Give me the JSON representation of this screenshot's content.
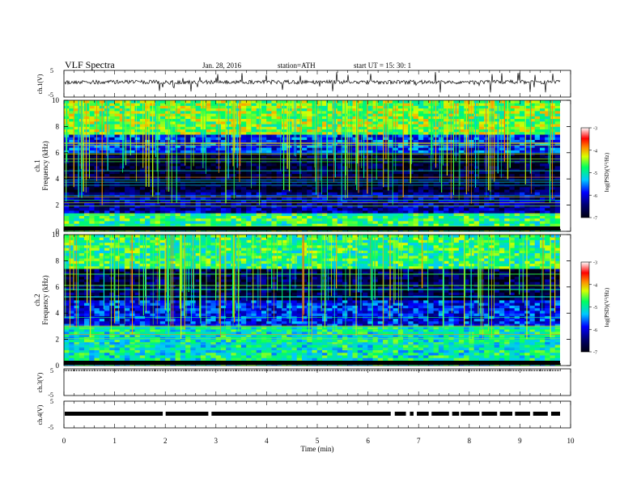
{
  "header": {
    "title": "VLF  Spectra",
    "date": "Jan. 28, 2016",
    "station": "station=ATH",
    "start": "start  UT  =    15: 30: 1"
  },
  "chart_data": [
    {
      "type": "line",
      "panel": "ch1-waveform",
      "ylabel": "ch.1(V)",
      "ylim": [
        -5,
        5
      ],
      "yticks": [
        "5",
        "-5"
      ],
      "xlim": [
        0,
        10
      ],
      "series": [
        {
          "values_note": "noisy waveform near 0 V with spikes",
          "baseline": 0
        }
      ]
    },
    {
      "type": "heatmap",
      "panel": "ch1-spectrogram",
      "ylabel_line1": "ch.1",
      "ylabel_line2": "Frequency  (kHz)",
      "ylim": [
        0,
        10
      ],
      "yticks": [
        "0",
        "2",
        "4",
        "6",
        "8",
        "10"
      ],
      "xlim": [
        0,
        9.8
      ],
      "colorbar": {
        "label": "log(PSD)(V²/Hz)",
        "ticks": [
          "-3",
          "-4",
          "-5",
          "-6",
          "-7"
        ],
        "range": [
          -7,
          -3
        ]
      },
      "bands": [
        {
          "from": 0,
          "to": 1.5,
          "level": 0.55
        },
        {
          "from": 1.5,
          "to": 3.0,
          "level": 0.18
        },
        {
          "from": 3.0,
          "to": 6.0,
          "level": 0.05
        },
        {
          "from": 6.0,
          "to": 7.5,
          "level": 0.3
        },
        {
          "from": 7.5,
          "to": 10.0,
          "level": 0.62
        }
      ]
    },
    {
      "type": "heatmap",
      "panel": "ch2-spectrogram",
      "ylabel_line1": "ch.2",
      "ylabel_line2": "Frequency  (kHz)",
      "ylim": [
        0,
        10
      ],
      "yticks": [
        "0",
        "2",
        "4",
        "6",
        "8",
        "10"
      ],
      "xlim": [
        0,
        9.8
      ],
      "colorbar": {
        "label": "log(PSD)(V²/Hz)",
        "ticks": [
          "-3",
          "-4",
          "-5",
          "-6",
          "-7"
        ],
        "range": [
          -7,
          -3
        ]
      },
      "bands": [
        {
          "from": 0,
          "to": 3.0,
          "level": 0.5
        },
        {
          "from": 3.0,
          "to": 5.0,
          "level": 0.28
        },
        {
          "from": 5.0,
          "to": 7.5,
          "level": 0.08
        },
        {
          "from": 7.5,
          "to": 10.0,
          "level": 0.55
        }
      ]
    },
    {
      "type": "line",
      "panel": "ch3-waveform",
      "ylabel": "ch.3(V)",
      "ylim": [
        -5,
        5
      ],
      "yticks": [
        "5",
        "-5"
      ],
      "xlim": [
        0,
        10
      ]
    },
    {
      "type": "line",
      "panel": "ch4-waveform",
      "ylabel": "ch.4(V)",
      "ylim": [
        -5,
        5
      ],
      "yticks": [
        "5",
        "-5"
      ],
      "xlim": [
        0,
        10
      ],
      "xlabel": "Time  (min)",
      "xticks": [
        "0",
        "1",
        "2",
        "3",
        "4",
        "5",
        "6",
        "7",
        "8",
        "9",
        "10"
      ]
    }
  ]
}
